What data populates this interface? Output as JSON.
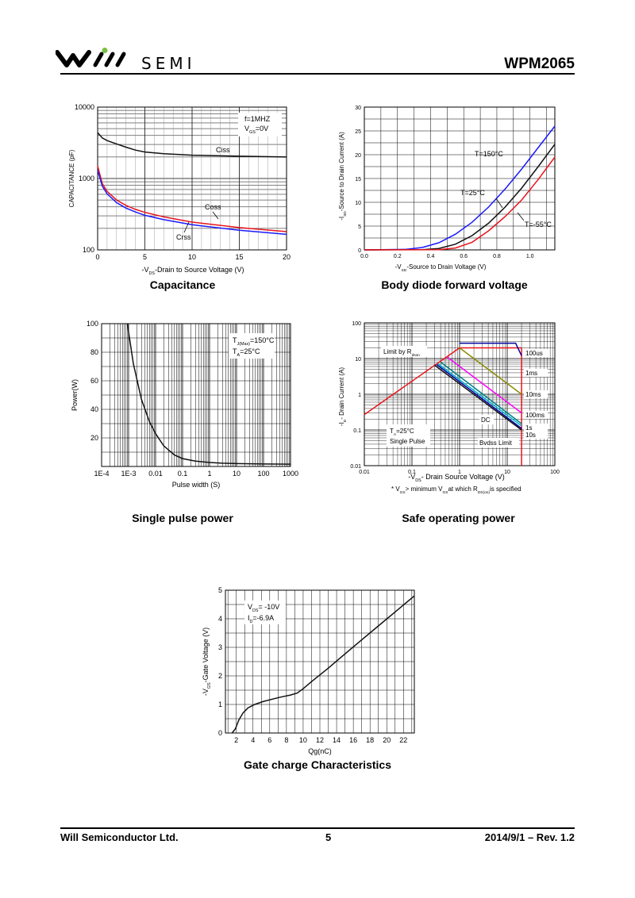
{
  "header": {
    "logo_text": "SEMI",
    "part_number": "WPM2065"
  },
  "footer": {
    "company": "Will Semiconductor Ltd.",
    "page": "5",
    "revision": "2014/9/1 – Rev. 1.2"
  },
  "captions": {
    "capacitance": "Capacitance",
    "body_diode": "Body diode forward voltage",
    "single_pulse": "Single pulse power",
    "soa": "Safe operating power",
    "gate_charge": "Gate charge Characteristics"
  },
  "colors": {
    "blue": "#1a1aff",
    "red": "#e8141c",
    "black": "#111111",
    "olive": "#8a8a00",
    "magenta": "#ff00ff",
    "teal": "#008080",
    "cyan": "#00b0d0",
    "navy": "#0000a0"
  },
  "chart_data": [
    {
      "id": "capacitance",
      "type": "line",
      "title": "Capacitance",
      "xlabel_main": "-V",
      "xlabel_sub": "DS",
      "xlabel_rest": "-Drain to Source Voltage (V)",
      "ylabel": "CAPACITANCE (pF)",
      "xlim": [
        0,
        20
      ],
      "ylim": [
        100,
        10000
      ],
      "yscale": "log",
      "xticks": [
        "0",
        "5",
        "10",
        "15",
        "20"
      ],
      "yticks": [
        "100",
        "1000",
        "10000"
      ],
      "annotation": [
        "f=1MHZ",
        "V",
        "GS",
        "=0V"
      ],
      "series": [
        {
          "name": "Ciss",
          "color": "#111111",
          "x": [
            0,
            0.5,
            1,
            2,
            3,
            4,
            5,
            7,
            10,
            15,
            20
          ],
          "y": [
            4400,
            3700,
            3400,
            3050,
            2750,
            2500,
            2350,
            2220,
            2120,
            2050,
            2000
          ]
        },
        {
          "name": "Coss",
          "color": "#e8141c",
          "x": [
            0,
            0.5,
            1,
            2,
            3,
            4,
            5,
            7,
            10,
            15,
            20
          ],
          "y": [
            1500,
            850,
            660,
            500,
            420,
            370,
            335,
            290,
            245,
            205,
            180
          ]
        },
        {
          "name": "Crss",
          "color": "#1a1aff",
          "x": [
            0,
            0.5,
            1,
            2,
            3,
            4,
            5,
            7,
            10,
            15,
            20
          ],
          "y": [
            1300,
            780,
            610,
            460,
            385,
            340,
            305,
            265,
            225,
            188,
            165
          ]
        }
      ]
    },
    {
      "id": "body_diode",
      "type": "line",
      "title": "Body diode forward voltage",
      "xlabel_main": "-V",
      "xlabel_sub": "SD",
      "xlabel_rest": "-Source to Drain Voltage (V)",
      "ylabel_main": "-I",
      "ylabel_sub": "SD",
      "ylabel_rest": "-Source to Drain Current (A)",
      "xlim": [
        0.0,
        1.15
      ],
      "ylim": [
        0,
        30
      ],
      "xticks": [
        "0.0",
        "0.2",
        "0.4",
        "0.6",
        "0.8",
        "1.0"
      ],
      "yticks": [
        "0",
        "5",
        "10",
        "15",
        "20",
        "25",
        "30"
      ],
      "series": [
        {
          "name": "T=150°C",
          "color": "#1a1aff",
          "x": [
            0.0,
            0.25,
            0.35,
            0.45,
            0.55,
            0.65,
            0.75,
            0.85,
            0.95,
            1.05,
            1.15
          ],
          "y": [
            0,
            0.1,
            0.5,
            1.5,
            3.3,
            5.8,
            9.0,
            12.8,
            17.0,
            21.5,
            26.0
          ]
        },
        {
          "name": "T=25°C",
          "color": "#111111",
          "x": [
            0.0,
            0.35,
            0.45,
            0.55,
            0.65,
            0.75,
            0.85,
            0.95,
            1.05,
            1.15
          ],
          "y": [
            0,
            0.05,
            0.3,
            1.2,
            3.0,
            5.6,
            9.0,
            13.0,
            17.5,
            22.2
          ]
        },
        {
          "name": "T=-55°C",
          "color": "#e8141c",
          "x": [
            0.0,
            0.45,
            0.55,
            0.65,
            0.75,
            0.85,
            0.95,
            1.05,
            1.15
          ],
          "y": [
            0,
            0.05,
            0.4,
            1.6,
            4.0,
            7.0,
            10.5,
            14.8,
            19.5
          ]
        }
      ]
    },
    {
      "id": "single_pulse",
      "type": "line",
      "title": "Single pulse power",
      "xlabel": "Pulse width (S)",
      "ylabel": "Power(W)",
      "xscale": "log",
      "xlim": [
        0.0001,
        1000
      ],
      "ylim": [
        0,
        100
      ],
      "xticks": [
        "1E-4",
        "1E-3",
        "0.01",
        "0.1",
        "1",
        "10",
        "100",
        "1000"
      ],
      "yticks": [
        "20",
        "40",
        "60",
        "80",
        "100"
      ],
      "annotation": [
        "T",
        "J(Max)",
        "=150°C",
        "T",
        "A",
        "=25°C"
      ],
      "series": [
        {
          "name": "Power",
          "color": "#111111",
          "x": [
            0.0009,
            0.0015,
            0.003,
            0.006,
            0.01,
            0.02,
            0.05,
            0.1,
            0.3,
            1,
            3,
            10,
            100,
            1000
          ],
          "y": [
            100,
            72,
            47,
            31,
            23,
            14.5,
            8,
            5.5,
            3.8,
            2.8,
            2.3,
            2.0,
            1.7,
            1.6
          ]
        }
      ]
    },
    {
      "id": "soa",
      "type": "line",
      "title": "Safe operating power",
      "xlabel_main": "-V",
      "xlabel_sub": "DS",
      "xlabel_rest": "- Drain Source Voltage (V)",
      "ylabel_main": "-I",
      "ylabel_sub": "D",
      "ylabel_rest": "- Drain Current (A)",
      "xscale": "log",
      "yscale": "log",
      "xlim": [
        0.01,
        100
      ],
      "ylim": [
        0.01,
        100
      ],
      "xticks": [
        "0.01",
        "0.1",
        "1",
        "10",
        "100"
      ],
      "yticks": [
        "0.01",
        "0.1",
        "1",
        "10",
        "100"
      ],
      "note": [
        "* V",
        "GS",
        "> minimum V",
        "GS",
        "at which R",
        "DS(on)",
        "is specified"
      ],
      "labels": [
        "Limit by R",
        "dson",
        "T",
        "A",
        "=25°C",
        "Single Pulse",
        "DC",
        "Bvdss Limit"
      ],
      "series": [
        {
          "name": "Limit by Rdson",
          "color": "#e8141c",
          "x": [
            0.01,
            1,
            20
          ],
          "y": [
            0.27,
            20,
            20
          ]
        },
        {
          "name": "Bvdss Limit",
          "color": "#e8141c",
          "x": [
            20,
            20
          ],
          "y": [
            20,
            0.01
          ]
        },
        {
          "name": "100us",
          "color": "#0000a0",
          "x": [
            1,
            15,
            20
          ],
          "y": [
            27,
            27,
            12
          ]
        },
        {
          "name": "1ms",
          "color": "#8a8a00",
          "x": [
            1.0,
            20
          ],
          "y": [
            20,
            1.0
          ]
        },
        {
          "name": "10ms",
          "color": "#ff00ff",
          "x": [
            0.55,
            20
          ],
          "y": [
            11,
            0.3
          ]
        },
        {
          "name": "100ms",
          "color": "#008080",
          "x": [
            0.4,
            20
          ],
          "y": [
            8,
            0.15
          ]
        },
        {
          "name": "1s",
          "color": "#00b0d0",
          "x": [
            0.35,
            20
          ],
          "y": [
            7.2,
            0.13
          ]
        },
        {
          "name": "10s",
          "color": "#0000a0",
          "x": [
            0.33,
            20
          ],
          "y": [
            6.8,
            0.11
          ]
        },
        {
          "name": "DC",
          "color": "#111111",
          "x": [
            0.3,
            20
          ],
          "y": [
            6.5,
            0.1
          ]
        }
      ]
    },
    {
      "id": "gate_charge",
      "type": "line",
      "title": "Gate charge Characteristics",
      "xlabel": "Qg(nC)",
      "ylabel_main": "-V",
      "ylabel_sub": "GS",
      "ylabel_rest": "-Gate Voltage (V)",
      "xlim": [
        0.7,
        23.3
      ],
      "ylim": [
        0,
        5
      ],
      "xticks": [
        "2",
        "4",
        "6",
        "8",
        "10",
        "12",
        "14",
        "16",
        "18",
        "20",
        "22"
      ],
      "yticks": [
        "0",
        "1",
        "2",
        "3",
        "4",
        "5"
      ],
      "annotation": [
        "V",
        "DS",
        "= -10V",
        "I",
        "D",
        "=-6.9A"
      ],
      "series": [
        {
          "name": "VGS",
          "color": "#111111",
          "x": [
            1.5,
            1.9,
            2.3,
            2.8,
            3.4,
            4.2,
            5.2,
            6.5,
            7.5,
            8.5,
            9.3,
            10.0,
            11,
            13,
            15,
            17,
            19,
            21,
            23.3
          ],
          "y": [
            0,
            0.15,
            0.45,
            0.7,
            0.88,
            1.0,
            1.1,
            1.2,
            1.27,
            1.33,
            1.4,
            1.55,
            1.8,
            2.27,
            2.77,
            3.26,
            3.75,
            4.24,
            4.8
          ]
        }
      ]
    }
  ]
}
